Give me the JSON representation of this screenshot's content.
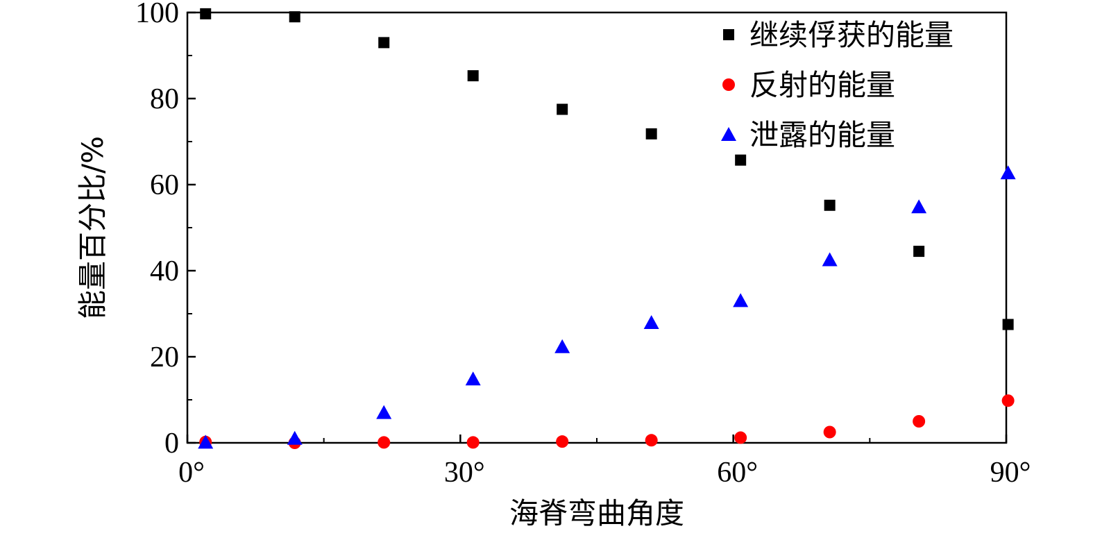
{
  "chart_data": {
    "type": "scatter",
    "xlabel": "海脊弯曲角度",
    "ylabel": "能量百分比/%",
    "xlim": [
      0,
      90
    ],
    "ylim": [
      0,
      100
    ],
    "x_ticks": [
      {
        "value": 0,
        "label": "0°"
      },
      {
        "value": 30,
        "label": "30°"
      },
      {
        "value": 60,
        "label": "60°"
      },
      {
        "value": 90,
        "label": "90°"
      }
    ],
    "y_ticks": [
      {
        "value": 0,
        "label": "0"
      },
      {
        "value": 20,
        "label": "20"
      },
      {
        "value": 40,
        "label": "40"
      },
      {
        "value": 60,
        "label": "60"
      },
      {
        "value": 80,
        "label": "80"
      },
      {
        "value": 100,
        "label": "100"
      }
    ],
    "grid": false,
    "legend_position": "top-right",
    "series": [
      {
        "name": "继续俘获的能量",
        "marker": "square",
        "color": "#000000",
        "points": [
          [
            2,
            99.7
          ],
          [
            11.8,
            99
          ],
          [
            21.6,
            93
          ],
          [
            31.4,
            85.3
          ],
          [
            41.2,
            77.5
          ],
          [
            51,
            71.8
          ],
          [
            60.8,
            65.7
          ],
          [
            70.6,
            55.2
          ],
          [
            80.4,
            44.5
          ],
          [
            90.2,
            27.5
          ]
        ]
      },
      {
        "name": "反射的能量",
        "marker": "circle",
        "color": "#ff0000",
        "points": [
          [
            2,
            0.2
          ],
          [
            11.8,
            0
          ],
          [
            21.6,
            0.1
          ],
          [
            31.4,
            0.1
          ],
          [
            41.2,
            0.3
          ],
          [
            51,
            0.6
          ],
          [
            60.8,
            1.2
          ],
          [
            70.6,
            2.5
          ],
          [
            80.4,
            5
          ],
          [
            90.2,
            9.8
          ]
        ]
      },
      {
        "name": "泄露的能量",
        "marker": "triangle",
        "color": "#0000ff",
        "points": [
          [
            2,
            0.1
          ],
          [
            11.8,
            1
          ],
          [
            21.6,
            7
          ],
          [
            31.4,
            14.8
          ],
          [
            41.2,
            22.3
          ],
          [
            51,
            27.9
          ],
          [
            60.8,
            33
          ],
          [
            70.6,
            42.5
          ],
          [
            80.4,
            54.8
          ],
          [
            90.2,
            62.7
          ]
        ]
      }
    ]
  }
}
